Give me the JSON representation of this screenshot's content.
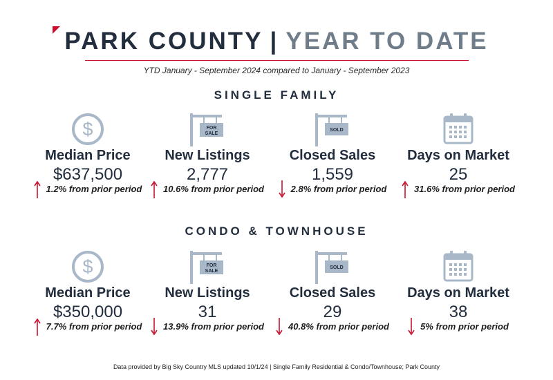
{
  "header": {
    "title_part1": "PARK COUNTY",
    "separator": "|",
    "title_part2": "YEAR TO DATE",
    "subtitle": "YTD January - September 2024 compared to January - September 2023"
  },
  "colors": {
    "accent": "#c8102e",
    "navy": "#222d3d",
    "gray_blue": "#6f7c89",
    "icon": "#a9b8c9"
  },
  "sections": [
    {
      "title": "SINGLE FAMILY",
      "stats": [
        {
          "icon": "dollar-icon",
          "label": "Median Price",
          "value": "$637,500",
          "direction": "up",
          "change": "1.2% from prior period"
        },
        {
          "icon": "for-sale-sign-icon",
          "sign_text": [
            "FOR",
            "SALE"
          ],
          "label": "New Listings",
          "value": "2,777",
          "direction": "up",
          "change": "10.6% from prior period"
        },
        {
          "icon": "sold-sign-icon",
          "sign_text": [
            "SOLD"
          ],
          "label": "Closed Sales",
          "value": "1,559",
          "direction": "down",
          "change": "2.8% from prior period"
        },
        {
          "icon": "calendar-icon",
          "label": "Days on Market",
          "value": "25",
          "direction": "up",
          "change": "31.6% from prior period"
        }
      ]
    },
    {
      "title": "CONDO & TOWNHOUSE",
      "stats": [
        {
          "icon": "dollar-icon",
          "label": "Median Price",
          "value": "$350,000",
          "direction": "up",
          "change": "7.7% from prior period"
        },
        {
          "icon": "for-sale-sign-icon",
          "sign_text": [
            "FOR",
            "SALE"
          ],
          "label": "New Listings",
          "value": "31",
          "direction": "down",
          "change": "13.9% from prior period"
        },
        {
          "icon": "sold-sign-icon",
          "sign_text": [
            "SOLD"
          ],
          "label": "Closed Sales",
          "value": "29",
          "direction": "down",
          "change": "40.8% from prior period"
        },
        {
          "icon": "calendar-icon",
          "label": "Days on Market",
          "value": "38",
          "direction": "down",
          "change": "5% from prior period"
        }
      ]
    }
  ],
  "footer": "Data provided by Big Sky Country MLS updated 10/1/24 | Single Family Residential & Condo/Townhouse; Park County"
}
